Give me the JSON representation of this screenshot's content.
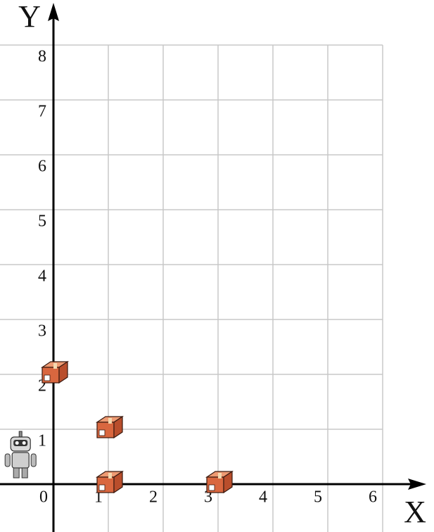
{
  "axes": {
    "x_label": "X",
    "y_label": "Y",
    "xticks": [
      0,
      1,
      2,
      3,
      4,
      5,
      6
    ],
    "yticks": [
      1,
      2,
      3,
      4,
      5,
      6,
      7,
      8
    ]
  },
  "boxes": [
    {
      "x": 0,
      "y": 2
    },
    {
      "x": 1,
      "y": 1
    },
    {
      "x": 1,
      "y": 0
    },
    {
      "x": 3,
      "y": 0
    }
  ],
  "robot": {
    "x": -0.6,
    "y": 0.5
  }
}
